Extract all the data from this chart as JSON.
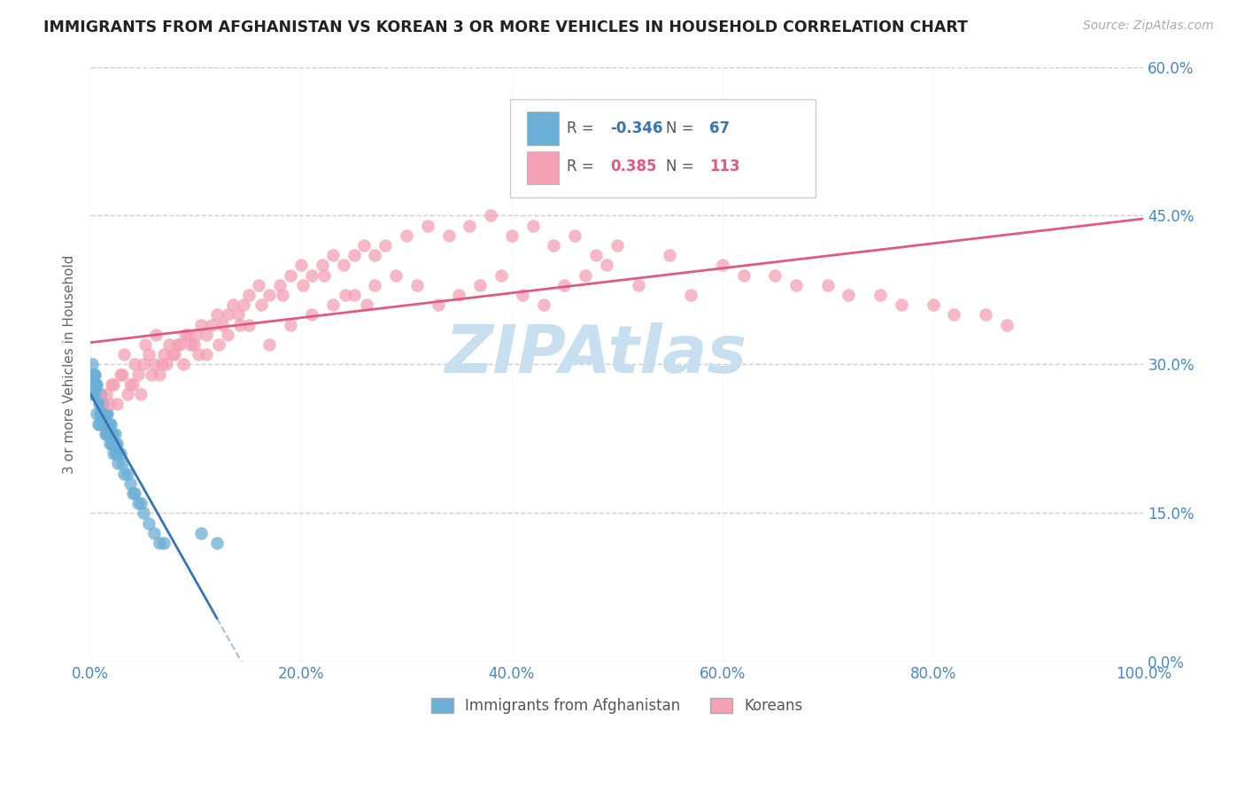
{
  "title": "IMMIGRANTS FROM AFGHANISTAN VS KOREAN 3 OR MORE VEHICLES IN HOUSEHOLD CORRELATION CHART",
  "source": "Source: ZipAtlas.com",
  "ylabel": "3 or more Vehicles in Household",
  "legend_label1": "Immigrants from Afghanistan",
  "legend_label2": "Koreans",
  "r1": -0.346,
  "n1": 67,
  "r2": 0.385,
  "n2": 113,
  "color1": "#6baed6",
  "color2": "#f4a0b5",
  "line1_color": "#3575b5",
  "line2_color": "#e05a80",
  "bg_color": "#ffffff",
  "grid_color": "#cccccc",
  "title_color": "#222222",
  "axis_label_color": "#4488cc",
  "watermark_color": "#c8dff0",
  "xlim": [
    0,
    100
  ],
  "ylim": [
    0,
    60
  ],
  "yticks": [
    0,
    15,
    30,
    45,
    60
  ],
  "xticks": [
    0,
    20,
    40,
    60,
    80,
    100
  ],
  "afghanistan_x": [
    0.2,
    0.3,
    0.3,
    0.4,
    0.4,
    0.5,
    0.5,
    0.6,
    0.6,
    0.7,
    0.7,
    0.8,
    0.8,
    0.9,
    0.9,
    1.0,
    1.0,
    1.1,
    1.1,
    1.2,
    1.2,
    1.3,
    1.3,
    1.4,
    1.4,
    1.5,
    1.5,
    1.6,
    1.6,
    1.7,
    1.8,
    1.8,
    1.9,
    1.9,
    2.0,
    2.0,
    2.1,
    2.1,
    2.2,
    2.2,
    2.3,
    2.3,
    2.4,
    2.5,
    2.5,
    2.6,
    2.8,
    3.0,
    3.2,
    3.5,
    3.8,
    4.0,
    4.2,
    4.5,
    4.8,
    5.0,
    5.5,
    6.0,
    6.5,
    7.0,
    0.15,
    0.25,
    0.35,
    0.45,
    0.55,
    10.5,
    12.0
  ],
  "afghanistan_y": [
    27,
    28,
    29,
    27,
    29,
    27,
    28,
    25,
    28,
    24,
    27,
    24,
    26,
    25,
    27,
    25,
    27,
    25,
    26,
    24,
    26,
    25,
    25,
    23,
    24,
    23,
    25,
    24,
    25,
    23,
    22,
    24,
    23,
    24,
    22,
    23,
    22,
    23,
    21,
    22,
    22,
    23,
    21,
    21,
    22,
    20,
    21,
    20,
    19,
    19,
    18,
    17,
    17,
    16,
    16,
    15,
    14,
    13,
    12,
    12,
    30,
    29,
    29,
    28,
    27,
    13,
    12
  ],
  "korean_x": [
    1.5,
    2.0,
    2.5,
    3.0,
    3.5,
    4.0,
    4.5,
    5.0,
    5.5,
    6.0,
    6.5,
    7.0,
    7.5,
    8.0,
    8.5,
    9.0,
    9.5,
    10.0,
    10.5,
    11.0,
    11.5,
    12.0,
    12.5,
    13.0,
    13.5,
    14.0,
    14.5,
    15.0,
    16.0,
    17.0,
    18.0,
    19.0,
    20.0,
    21.0,
    22.0,
    23.0,
    24.0,
    25.0,
    26.0,
    27.0,
    28.0,
    30.0,
    32.0,
    34.0,
    36.0,
    38.0,
    40.0,
    42.0,
    44.0,
    46.0,
    48.0,
    50.0,
    55.0,
    60.0,
    65.0,
    70.0,
    75.0,
    80.0,
    85.0,
    1.8,
    2.2,
    2.8,
    3.2,
    4.2,
    5.2,
    6.2,
    7.2,
    8.2,
    9.2,
    10.2,
    12.2,
    14.2,
    16.2,
    18.2,
    20.2,
    22.2,
    24.2,
    26.2,
    3.8,
    4.8,
    5.8,
    6.8,
    7.8,
    8.8,
    9.8,
    11.0,
    13.0,
    15.0,
    17.0,
    19.0,
    21.0,
    23.0,
    25.0,
    27.0,
    29.0,
    31.0,
    33.0,
    35.0,
    37.0,
    39.0,
    41.0,
    43.0,
    45.0,
    47.0,
    49.0,
    52.0,
    57.0,
    62.0,
    67.0,
    72.0,
    77.0,
    82.0,
    87.0
  ],
  "korean_y": [
    27,
    28,
    26,
    29,
    27,
    28,
    29,
    30,
    31,
    30,
    29,
    31,
    32,
    31,
    32,
    33,
    32,
    33,
    34,
    33,
    34,
    35,
    34,
    35,
    36,
    35,
    36,
    37,
    38,
    37,
    38,
    39,
    40,
    39,
    40,
    41,
    40,
    41,
    42,
    41,
    42,
    43,
    44,
    43,
    44,
    45,
    43,
    44,
    42,
    43,
    41,
    42,
    41,
    40,
    39,
    38,
    37,
    36,
    35,
    26,
    28,
    29,
    31,
    30,
    32,
    33,
    30,
    32,
    33,
    31,
    32,
    34,
    36,
    37,
    38,
    39,
    37,
    36,
    28,
    27,
    29,
    30,
    31,
    30,
    32,
    31,
    33,
    34,
    32,
    34,
    35,
    36,
    37,
    38,
    39,
    38,
    36,
    37,
    38,
    39,
    37,
    36,
    38,
    39,
    40,
    38,
    37,
    39,
    38,
    37,
    36,
    35,
    34
  ]
}
